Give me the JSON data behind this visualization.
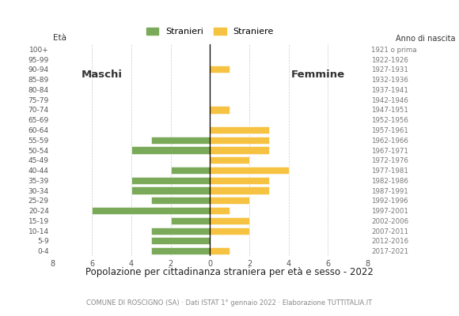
{
  "age_groups": [
    "100+",
    "95-99",
    "90-94",
    "85-89",
    "80-84",
    "75-79",
    "70-74",
    "65-69",
    "60-64",
    "55-59",
    "50-54",
    "45-49",
    "40-44",
    "35-39",
    "30-34",
    "25-29",
    "20-24",
    "15-19",
    "10-14",
    "5-9",
    "0-4"
  ],
  "birth_years": [
    "1921 o prima",
    "1922-1926",
    "1927-1931",
    "1932-1936",
    "1937-1941",
    "1942-1946",
    "1947-1951",
    "1952-1956",
    "1957-1961",
    "1962-1966",
    "1967-1971",
    "1972-1976",
    "1977-1981",
    "1982-1986",
    "1987-1991",
    "1992-1996",
    "1997-2001",
    "2002-2006",
    "2007-2011",
    "2012-2016",
    "2017-2021"
  ],
  "males": [
    0,
    0,
    0,
    0,
    0,
    0,
    0,
    0,
    0,
    3,
    4,
    0,
    2,
    4,
    4,
    3,
    6,
    2,
    3,
    3,
    3
  ],
  "females": [
    0,
    0,
    1,
    0,
    0,
    0,
    1,
    0,
    3,
    3,
    3,
    2,
    4,
    3,
    3,
    2,
    1,
    2,
    2,
    0,
    1
  ],
  "male_color": "#7aaa59",
  "female_color": "#f5c242",
  "male_label": "Stranieri",
  "female_label": "Straniere",
  "title": "Popolazione per cittadinanza straniera per età e sesso - 2022",
  "subtitle": "COMUNE DI ROSCIGNO (SA) · Dati ISTAT 1° gennaio 2022 · Elaborazione TUTTITALIA.IT",
  "eta_label": "Età",
  "label_maschi": "Maschi",
  "label_femmine": "Femmine",
  "anno_nascita_label": "Anno di nascita",
  "xlim": 8,
  "background_color": "#ffffff",
  "grid_color": "#cccccc"
}
